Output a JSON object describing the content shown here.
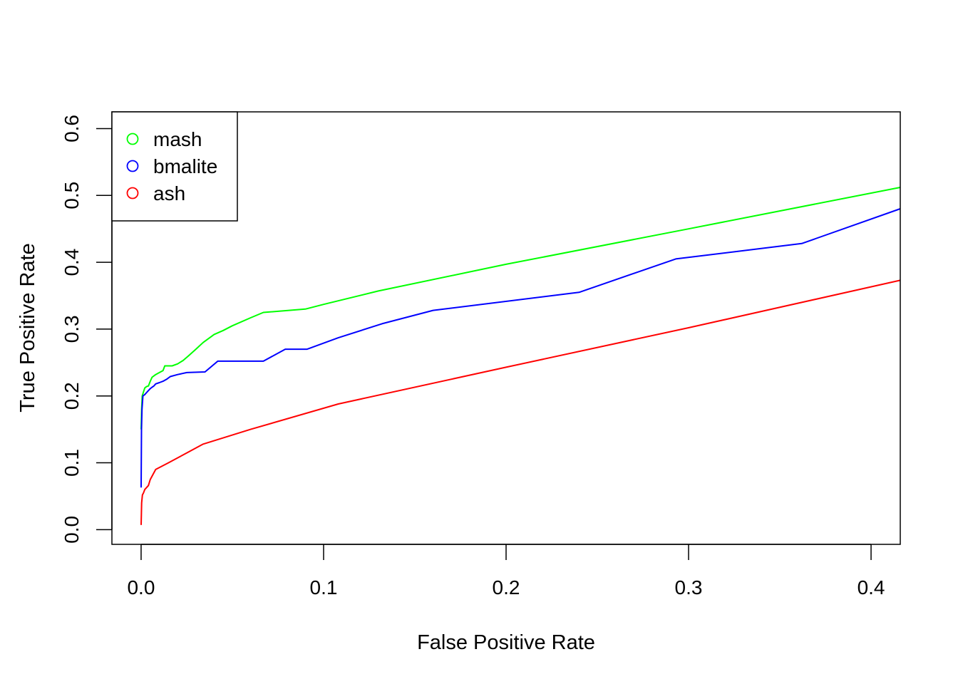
{
  "chart_data": {
    "type": "line",
    "title": "",
    "xlabel": "False Positive Rate",
    "ylabel": "True Positive Rate",
    "xlim": [
      -0.016,
      0.416
    ],
    "ylim": [
      -0.022,
      0.625
    ],
    "x_ticks": [
      0.0,
      0.1,
      0.2,
      0.3,
      0.4
    ],
    "x_tick_labels": [
      "0.0",
      "0.1",
      "0.2",
      "0.3",
      "0.4"
    ],
    "y_ticks": [
      0.0,
      0.1,
      0.2,
      0.3,
      0.4,
      0.5,
      0.6
    ],
    "y_tick_labels": [
      "0.0",
      "0.1",
      "0.2",
      "0.3",
      "0.4",
      "0.5",
      "0.6"
    ],
    "grid": false,
    "legend_position": "top-left",
    "series": [
      {
        "name": "mash",
        "color": "#00FF00",
        "x": [
          0,
          0.0003,
          0.0006,
          0.0012,
          0.002,
          0.003,
          0.004,
          0.005,
          0.006,
          0.007,
          0.008,
          0.01,
          0.012,
          0.013,
          0.015,
          0.017,
          0.02,
          0.023,
          0.026,
          0.03,
          0.034,
          0.038,
          0.04,
          0.045,
          0.05,
          0.06,
          0.067,
          0.09,
          0.1,
          0.13,
          0.2,
          0.3,
          0.416
        ],
        "y": [
          0.15,
          0.18,
          0.2,
          0.205,
          0.212,
          0.214,
          0.215,
          0.222,
          0.228,
          0.23,
          0.232,
          0.235,
          0.238,
          0.245,
          0.245,
          0.245,
          0.248,
          0.253,
          0.26,
          0.27,
          0.28,
          0.288,
          0.292,
          0.298,
          0.305,
          0.317,
          0.325,
          0.33,
          0.337,
          0.357,
          0.397,
          0.45,
          0.512
        ]
      },
      {
        "name": "bmalite",
        "color": "#0000FF",
        "x": [
          0,
          0.0002,
          0.0005,
          0.001,
          0.002,
          0.003,
          0.004,
          0.005,
          0.006,
          0.007,
          0.008,
          0.01,
          0.012,
          0.014,
          0.016,
          0.02,
          0.025,
          0.035,
          0.042,
          0.067,
          0.079,
          0.091,
          0.108,
          0.132,
          0.16,
          0.24,
          0.293,
          0.362,
          0.416
        ],
        "y": [
          0.063,
          0.15,
          0.18,
          0.2,
          0.202,
          0.205,
          0.208,
          0.211,
          0.213,
          0.215,
          0.218,
          0.22,
          0.222,
          0.225,
          0.229,
          0.232,
          0.235,
          0.236,
          0.252,
          0.252,
          0.27,
          0.27,
          0.287,
          0.308,
          0.328,
          0.355,
          0.405,
          0.428,
          0.48
        ]
      },
      {
        "name": "ash",
        "color": "#FF0000",
        "x": [
          0,
          0.0003,
          0.0007,
          0.0013,
          0.002,
          0.003,
          0.004,
          0.005,
          0.008,
          0.015,
          0.034,
          0.06,
          0.108,
          0.2,
          0.3,
          0.416
        ],
        "y": [
          0.007,
          0.04,
          0.052,
          0.055,
          0.06,
          0.063,
          0.066,
          0.075,
          0.09,
          0.1,
          0.128,
          0.15,
          0.188,
          0.243,
          0.302,
          0.373
        ]
      }
    ]
  }
}
